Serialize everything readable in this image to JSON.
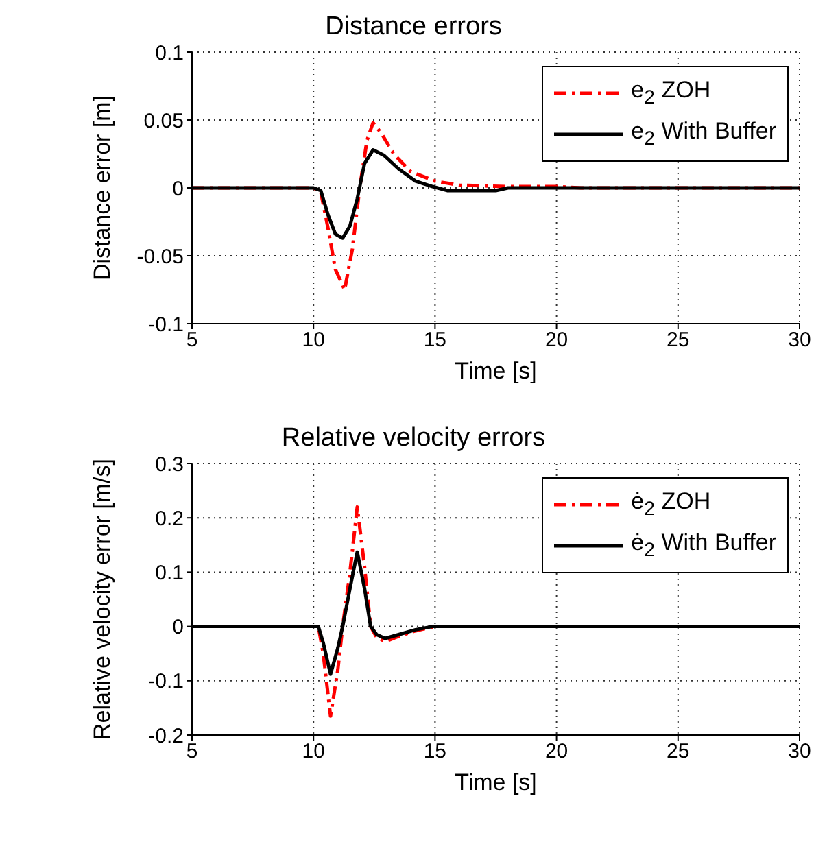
{
  "chart_data": [
    {
      "type": "line",
      "title": "Distance errors",
      "xlabel": "Time [s]",
      "ylabel": "Distance error [m]",
      "xlim": [
        5,
        30
      ],
      "xticks": [
        5,
        10,
        15,
        20,
        25,
        30
      ],
      "ylim": [
        -0.1,
        0.1
      ],
      "yticks": [
        -0.1,
        -0.05,
        0,
        0.05,
        0.1
      ],
      "grid": true,
      "legend": "top right",
      "marker": "none",
      "series": [
        {
          "name": "e$_{2}$ ZOH",
          "color": "#ff0000",
          "line_style": "dashed",
          "x": [
            5,
            10,
            10.3,
            10.6,
            10.9,
            11.28,
            11.6,
            11.9,
            12.2,
            12.45,
            12.8,
            13.3,
            14,
            15,
            16,
            18,
            20,
            21,
            30
          ],
          "values": [
            0,
            0,
            -0.003,
            -0.03,
            -0.06,
            -0.075,
            -0.045,
            0,
            0.035,
            0.048,
            0.04,
            0.025,
            0.012,
            0.005,
            0.002,
            0.001,
            0.001,
            0,
            0
          ]
        },
        {
          "name": "e$_{2}$ With Buffer",
          "color": "#000000",
          "line_style": "solid",
          "x": [
            5,
            10,
            10.3,
            10.6,
            10.9,
            11.2,
            11.5,
            11.8,
            12.1,
            12.45,
            12.9,
            13.5,
            14.2,
            14.9,
            15.5,
            17.5,
            18,
            30
          ],
          "values": [
            0,
            0,
            -0.002,
            -0.02,
            -0.034,
            -0.037,
            -0.028,
            -0.008,
            0.018,
            0.028,
            0.024,
            0.014,
            0.005,
            0.001,
            -0.002,
            -0.002,
            0,
            0
          ]
        }
      ]
    },
    {
      "type": "line",
      "title": "Relative velocity errors",
      "xlabel": "Time [s]",
      "ylabel": "Relative velocity error [m/s]",
      "xlim": [
        5,
        30
      ],
      "xticks": [
        5,
        10,
        15,
        20,
        25,
        30
      ],
      "ylim": [
        -0.2,
        0.3
      ],
      "yticks": [
        -0.2,
        -0.1,
        0,
        0.1,
        0.2,
        0.3
      ],
      "grid": true,
      "legend": "top right",
      "marker": "none",
      "series": [
        {
          "name": "ė$_{2}$ ZOH",
          "color": "#ff0000",
          "line_style": "dashed",
          "x": [
            5,
            10.2,
            10.4,
            10.7,
            11,
            11.2,
            11.5,
            11.8,
            12.1,
            12.35,
            12.6,
            12.95,
            13.5,
            14.2,
            15,
            30
          ],
          "values": [
            0,
            0,
            -0.05,
            -0.165,
            -0.08,
            0,
            0.1,
            0.22,
            0.11,
            0,
            -0.02,
            -0.028,
            -0.018,
            -0.008,
            0,
            0
          ]
        },
        {
          "name": "ė$_{2}$ With Buffer",
          "color": "#000000",
          "line_style": "solid",
          "x": [
            5,
            10.2,
            10.4,
            10.7,
            11,
            11.2,
            11.5,
            11.8,
            12.1,
            12.35,
            12.6,
            12.95,
            13.5,
            14.2,
            14.9,
            30
          ],
          "values": [
            0,
            0,
            -0.03,
            -0.088,
            -0.04,
            0,
            0.07,
            0.137,
            0.07,
            0,
            -0.015,
            -0.022,
            -0.015,
            -0.006,
            0,
            0
          ]
        }
      ]
    }
  ]
}
